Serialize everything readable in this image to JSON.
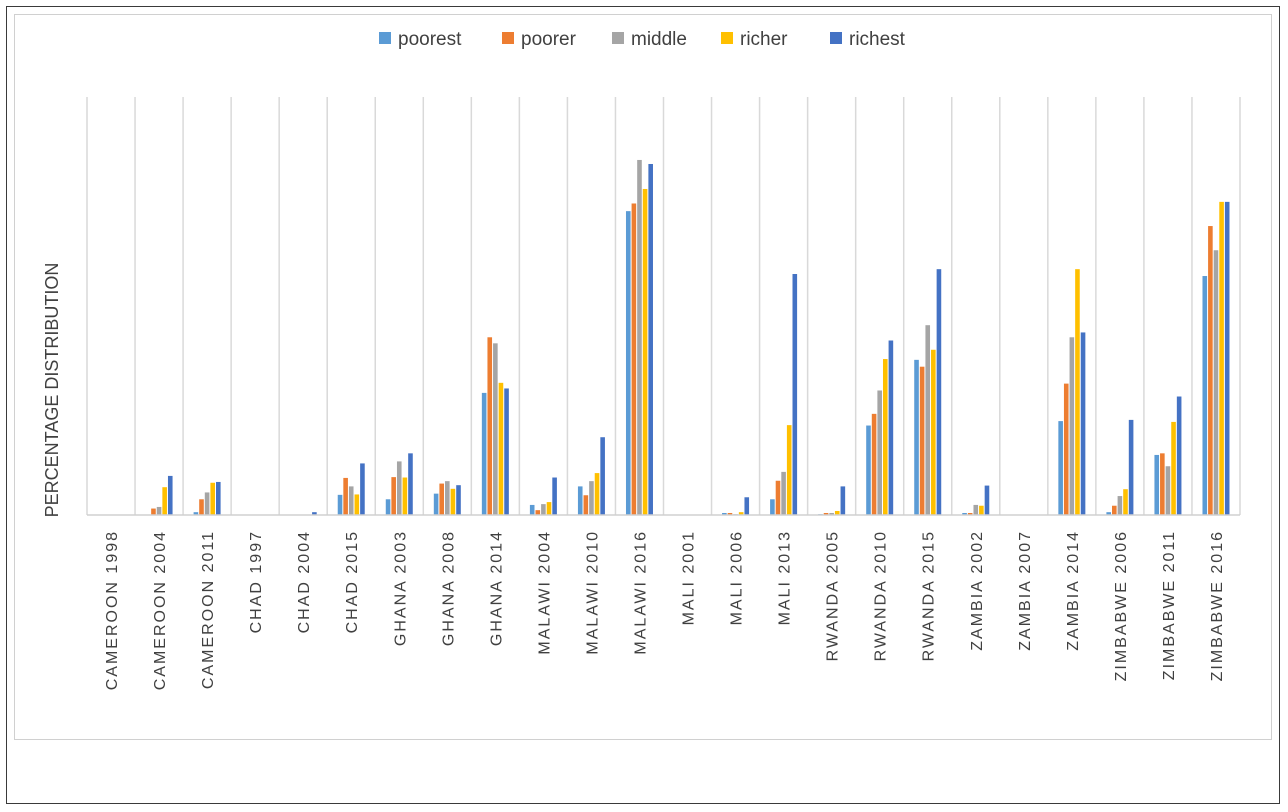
{
  "chart_data": {
    "type": "bar",
    "title": "",
    "xlabel": "",
    "ylabel": "PERCENTAGE DISTRIBUTION",
    "ylim": [
      0,
      100
    ],
    "grid": "vertical lines between categories",
    "legend_position": "top-center",
    "colors": {
      "poorest": "#5b9bd5",
      "poorer": "#ed7d31",
      "middle": "#a5a5a5",
      "richer": "#ffc000",
      "richest": "#4472c4"
    },
    "categories": [
      "CAMEROON 1998",
      "CAMEROON 2004",
      "CAMEROON 2011",
      "CHAD 1997",
      "CHAD 2004",
      "CHAD 2015",
      "GHANA 2003",
      "GHANA 2008",
      "GHANA 2014",
      "MALAWI 2004",
      "MALAWI 2010",
      "MALAWI 2016",
      "MALI 2001",
      "MALI 2006",
      "MALI 2013",
      "RWANDA 2005",
      "RWANDA 2010",
      "RWANDA 2015",
      "ZAMBIA 2002",
      "ZAMBIA 2007",
      "ZAMBIA 2014",
      "ZIMBABWE 2006",
      "ZIMBABWE 2011",
      "ZIMBABWE 2016"
    ],
    "series": [
      {
        "name": "poorest",
        "values": [
          0,
          0,
          0.7,
          0,
          0,
          5,
          3.9,
          5.3,
          30.3,
          2.5,
          7.1,
          75.4,
          0,
          0.5,
          3.9,
          0.2,
          22.2,
          38.5,
          0.5,
          0,
          23.3,
          0.7,
          14.9,
          59.3
        ]
      },
      {
        "name": "poorer",
        "values": [
          0,
          1.6,
          3.9,
          0,
          0,
          9.2,
          9.4,
          7.8,
          44.1,
          1.2,
          4.9,
          77.3,
          0,
          0.5,
          8.5,
          0.5,
          25.1,
          36.8,
          0.5,
          0,
          32.6,
          2.3,
          15.3,
          71.7
        ]
      },
      {
        "name": "middle",
        "values": [
          0,
          2,
          5.6,
          0,
          0,
          7.1,
          13.3,
          8.4,
          42.6,
          2.7,
          8.4,
          88.1,
          0,
          0.2,
          10.7,
          0.5,
          30.9,
          47.1,
          2.5,
          0,
          44.1,
          4.7,
          12.1,
          65.7
        ]
      },
      {
        "name": "richer",
        "values": [
          0,
          6.9,
          8,
          0,
          0,
          5.1,
          9.3,
          6.5,
          32.8,
          3.2,
          10.4,
          80.9,
          0,
          0.7,
          22.3,
          1,
          38.7,
          41,
          2.3,
          0,
          61,
          6.4,
          23.1,
          77.7
        ]
      },
      {
        "name": "richest",
        "values": [
          0,
          9.7,
          8.2,
          0,
          0.7,
          12.8,
          15.3,
          7.4,
          31.4,
          9.3,
          19.3,
          87.1,
          0,
          4.4,
          59.8,
          7.1,
          43.3,
          61,
          7.3,
          0,
          45.3,
          23.6,
          29.4,
          77.7
        ]
      }
    ]
  }
}
